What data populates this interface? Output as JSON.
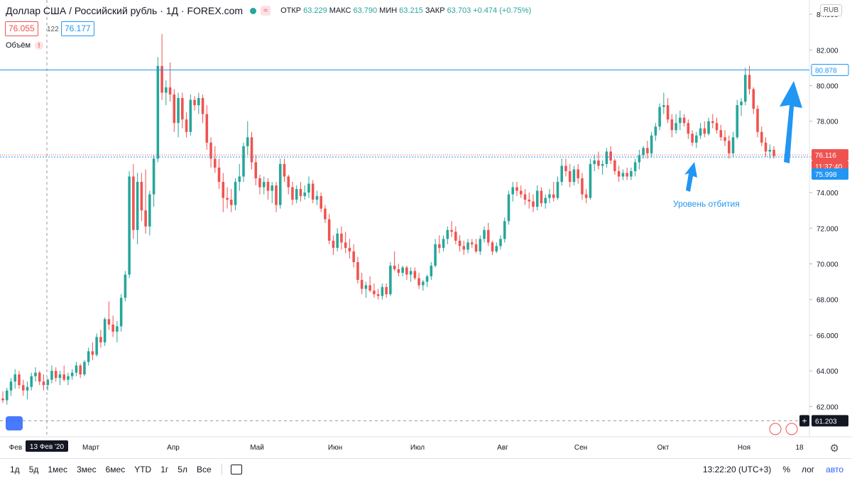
{
  "header": {
    "symbol": "Доллар США / Российский рубль · 1Д · FOREX.com",
    "wave": "≈",
    "open_label": "ОТКР",
    "open": "63.229",
    "high_label": "МАКС",
    "high": "63.790",
    "low_label": "МИН",
    "low": "63.215",
    "close_label": "ЗАКР",
    "close": "63.703",
    "change": "+0.474 (+0.75%)"
  },
  "prices": {
    "sell": "76.055",
    "spread": "122",
    "buy": "76.177"
  },
  "volume": {
    "label": "Объём",
    "warn": "!"
  },
  "currency": "RUB",
  "colors": {
    "up": "#26a69a",
    "down": "#ef5350",
    "line": "#2196f3",
    "annotation": "#2196f3"
  },
  "chart_data": {
    "type": "candlestick",
    "y_ticks": [
      "84.000",
      "82.000",
      "80.000",
      "78.000",
      "76.000",
      "74.000",
      "72.000",
      "70.000",
      "68.000",
      "66.000",
      "64.000",
      "62.000"
    ],
    "ylim": [
      60.3,
      84.8
    ],
    "x_ticks": [
      "Фев",
      "Март",
      "Апр",
      "Май",
      "Июн",
      "Июл",
      "Авг",
      "Сен",
      "Окт",
      "Ноя",
      "18"
    ],
    "crosshair_date": "13 Фев '20",
    "horizontal_levels": [
      {
        "value": 80.878,
        "label": "80.878",
        "style": "solid"
      },
      {
        "value": 76.116,
        "label": "76.116",
        "style": "price"
      },
      {
        "value": 75.998,
        "label": "75.998",
        "style": "dotted"
      }
    ],
    "countdown": "11:37:40",
    "crosshair_price": "61.203",
    "crosshair_price_value": 61.203,
    "annotation": "Уровень отбития",
    "candles": [
      [
        62.45,
        62.85,
        62.2,
        62.35
      ],
      [
        62.35,
        63.05,
        62.1,
        62.9
      ],
      [
        62.9,
        63.6,
        62.6,
        63.4
      ],
      [
        63.4,
        64.1,
        63.0,
        63.8
      ],
      [
        63.8,
        64.0,
        63.0,
        63.2
      ],
      [
        63.2,
        63.5,
        62.6,
        62.9
      ],
      [
        62.9,
        63.4,
        62.4,
        63.1
      ],
      [
        63.1,
        63.9,
        62.9,
        63.7
      ],
      [
        63.7,
        64.2,
        63.4,
        63.9
      ],
      [
        63.9,
        64.0,
        63.2,
        63.4
      ],
      [
        63.4,
        63.8,
        62.9,
        63.2
      ],
      [
        63.2,
        63.6,
        62.9,
        63.5
      ],
      [
        63.5,
        64.3,
        63.3,
        64.0
      ],
      [
        64.0,
        64.2,
        63.4,
        63.6
      ],
      [
        63.6,
        64.0,
        63.2,
        63.8
      ],
      [
        63.8,
        64.3,
        63.4,
        63.5
      ],
      [
        63.5,
        63.9,
        63.2,
        63.7
      ],
      [
        63.7,
        64.1,
        63.5,
        63.9
      ],
      [
        63.9,
        64.5,
        63.7,
        64.3
      ],
      [
        64.3,
        64.4,
        63.6,
        63.8
      ],
      [
        63.8,
        64.6,
        63.7,
        64.5
      ],
      [
        64.5,
        65.3,
        64.3,
        65.1
      ],
      [
        65.1,
        65.6,
        64.6,
        64.9
      ],
      [
        64.9,
        66.1,
        64.8,
        65.9
      ],
      [
        65.9,
        66.3,
        65.3,
        65.6
      ],
      [
        65.6,
        67.0,
        65.4,
        66.9
      ],
      [
        66.9,
        67.9,
        66.3,
        66.6
      ],
      [
        66.6,
        67.1,
        65.9,
        66.2
      ],
      [
        66.2,
        66.8,
        65.6,
        66.5
      ],
      [
        66.5,
        68.3,
        66.2,
        68.1
      ],
      [
        68.1,
        69.6,
        67.9,
        69.4
      ],
      [
        69.4,
        75.2,
        69.2,
        74.9
      ],
      [
        74.9,
        75.6,
        71.4,
        71.9
      ],
      [
        71.9,
        75.1,
        71.1,
        74.6
      ],
      [
        74.6,
        75.1,
        72.4,
        73.0
      ],
      [
        73.0,
        75.3,
        71.7,
        72.1
      ],
      [
        72.1,
        74.1,
        71.6,
        73.9
      ],
      [
        73.9,
        76.1,
        73.2,
        75.9
      ],
      [
        75.9,
        81.6,
        75.7,
        81.1
      ],
      [
        81.1,
        82.9,
        79.2,
        79.6
      ],
      [
        79.6,
        80.3,
        78.9,
        79.9
      ],
      [
        79.9,
        81.3,
        79.1,
        79.5
      ],
      [
        79.5,
        79.8,
        77.4,
        77.9
      ],
      [
        77.9,
        79.6,
        77.1,
        79.3
      ],
      [
        79.3,
        79.6,
        77.6,
        78.1
      ],
      [
        78.1,
        78.5,
        77.1,
        77.4
      ],
      [
        77.4,
        79.5,
        77.2,
        79.2
      ],
      [
        79.2,
        79.4,
        78.6,
        78.9
      ],
      [
        78.9,
        79.6,
        78.4,
        79.3
      ],
      [
        79.3,
        79.5,
        77.9,
        78.4
      ],
      [
        78.4,
        78.9,
        76.4,
        76.8
      ],
      [
        76.8,
        77.1,
        75.4,
        75.9
      ],
      [
        75.9,
        76.6,
        75.1,
        75.4
      ],
      [
        75.4,
        75.9,
        74.2,
        74.6
      ],
      [
        74.6,
        75.1,
        72.9,
        73.7
      ],
      [
        73.7,
        74.3,
        73.1,
        73.6
      ],
      [
        73.6,
        74.2,
        72.9,
        73.3
      ],
      [
        73.3,
        74.8,
        73.0,
        74.6
      ],
      [
        74.6,
        75.6,
        74.1,
        74.9
      ],
      [
        74.9,
        76.8,
        74.6,
        76.6
      ],
      [
        76.6,
        78.0,
        76.1,
        77.1
      ],
      [
        77.1,
        77.4,
        75.3,
        75.7
      ],
      [
        75.7,
        76.1,
        74.4,
        74.8
      ],
      [
        74.8,
        75.0,
        73.9,
        74.3
      ],
      [
        74.3,
        74.9,
        73.9,
        74.6
      ],
      [
        74.6,
        74.8,
        73.6,
        74.1
      ],
      [
        74.1,
        74.6,
        73.4,
        74.4
      ],
      [
        74.4,
        74.6,
        72.9,
        73.3
      ],
      [
        73.3,
        75.9,
        73.1,
        75.6
      ],
      [
        75.6,
        75.9,
        74.6,
        74.9
      ],
      [
        74.9,
        75.0,
        73.9,
        74.3
      ],
      [
        74.3,
        74.6,
        73.3,
        73.6
      ],
      [
        73.6,
        74.4,
        73.4,
        74.2
      ],
      [
        74.2,
        74.6,
        73.5,
        73.8
      ],
      [
        73.8,
        74.4,
        73.6,
        74.0
      ],
      [
        74.0,
        74.9,
        73.7,
        74.5
      ],
      [
        74.5,
        74.7,
        73.4,
        73.6
      ],
      [
        73.6,
        74.1,
        73.3,
        73.8
      ],
      [
        73.8,
        74.0,
        72.9,
        73.1
      ],
      [
        73.1,
        73.3,
        72.3,
        72.5
      ],
      [
        72.5,
        72.8,
        71.1,
        71.3
      ],
      [
        71.3,
        71.6,
        70.5,
        70.9
      ],
      [
        70.9,
        72.0,
        70.7,
        71.7
      ],
      [
        71.7,
        72.1,
        70.8,
        71.2
      ],
      [
        71.2,
        71.8,
        70.6,
        70.9
      ],
      [
        70.9,
        71.4,
        70.3,
        70.7
      ],
      [
        70.7,
        71.1,
        69.8,
        70.1
      ],
      [
        70.1,
        70.4,
        68.9,
        69.1
      ],
      [
        69.1,
        69.5,
        68.3,
        68.6
      ],
      [
        68.6,
        69.0,
        68.1,
        68.8
      ],
      [
        68.8,
        69.3,
        68.4,
        68.5
      ],
      [
        68.5,
        68.9,
        68.1,
        68.3
      ],
      [
        68.3,
        68.6,
        68.0,
        68.2
      ],
      [
        68.2,
        68.9,
        68.0,
        68.7
      ],
      [
        68.7,
        68.9,
        68.1,
        68.3
      ],
      [
        68.3,
        70.1,
        68.2,
        69.9
      ],
      [
        69.9,
        70.7,
        69.6,
        69.7
      ],
      [
        69.7,
        70.0,
        69.3,
        69.5
      ],
      [
        69.5,
        69.9,
        69.3,
        69.8
      ],
      [
        69.8,
        69.9,
        69.1,
        69.4
      ],
      [
        69.4,
        69.8,
        69.0,
        69.6
      ],
      [
        69.6,
        69.8,
        69.1,
        69.2
      ],
      [
        69.2,
        69.5,
        68.6,
        68.8
      ],
      [
        68.8,
        69.1,
        68.5,
        69.0
      ],
      [
        69.0,
        69.4,
        68.7,
        69.3
      ],
      [
        69.3,
        70.1,
        69.1,
        69.9
      ],
      [
        69.9,
        71.4,
        69.8,
        71.1
      ],
      [
        71.1,
        71.6,
        70.6,
        70.9
      ],
      [
        70.9,
        71.6,
        70.7,
        71.4
      ],
      [
        71.4,
        72.1,
        71.1,
        71.9
      ],
      [
        71.9,
        72.4,
        71.5,
        71.8
      ],
      [
        71.8,
        72.1,
        71.1,
        71.3
      ],
      [
        71.3,
        71.6,
        70.7,
        71.0
      ],
      [
        71.0,
        71.3,
        70.5,
        70.8
      ],
      [
        70.8,
        71.4,
        70.6,
        71.2
      ],
      [
        71.2,
        71.4,
        70.9,
        71.1
      ],
      [
        71.1,
        71.4,
        70.6,
        70.7
      ],
      [
        70.7,
        71.6,
        70.5,
        71.4
      ],
      [
        71.4,
        72.1,
        71.2,
        71.9
      ],
      [
        71.9,
        72.3,
        71.0,
        71.2
      ],
      [
        71.2,
        71.3,
        70.5,
        70.7
      ],
      [
        70.7,
        71.2,
        70.6,
        71.0
      ],
      [
        71.0,
        71.6,
        70.8,
        71.4
      ],
      [
        71.4,
        72.6,
        71.2,
        72.4
      ],
      [
        72.4,
        74.1,
        72.2,
        73.9
      ],
      [
        73.9,
        74.6,
        73.5,
        74.3
      ],
      [
        74.3,
        74.6,
        73.8,
        74.1
      ],
      [
        74.1,
        74.4,
        73.7,
        73.9
      ],
      [
        73.9,
        74.2,
        73.3,
        73.6
      ],
      [
        73.6,
        74.0,
        73.1,
        73.5
      ],
      [
        73.5,
        73.9,
        72.9,
        73.2
      ],
      [
        73.2,
        74.4,
        73.0,
        74.1
      ],
      [
        74.1,
        74.3,
        73.2,
        73.4
      ],
      [
        73.4,
        73.9,
        73.1,
        73.7
      ],
      [
        73.7,
        74.2,
        73.4,
        73.9
      ],
      [
        73.9,
        74.6,
        73.5,
        73.7
      ],
      [
        73.7,
        74.9,
        73.6,
        74.6
      ],
      [
        74.6,
        75.9,
        74.4,
        75.5
      ],
      [
        75.5,
        75.9,
        74.9,
        75.2
      ],
      [
        75.2,
        75.6,
        74.3,
        74.6
      ],
      [
        74.6,
        75.5,
        74.4,
        75.3
      ],
      [
        75.3,
        75.6,
        74.5,
        74.8
      ],
      [
        74.8,
        75.1,
        73.6,
        73.9
      ],
      [
        73.9,
        74.2,
        73.4,
        73.7
      ],
      [
        73.7,
        75.9,
        73.6,
        75.6
      ],
      [
        75.6,
        76.1,
        75.2,
        75.8
      ],
      [
        75.8,
        76.3,
        75.3,
        75.5
      ],
      [
        75.5,
        75.8,
        75.0,
        75.6
      ],
      [
        75.6,
        76.5,
        75.4,
        76.3
      ],
      [
        76.3,
        76.6,
        75.6,
        75.8
      ],
      [
        75.8,
        75.9,
        75.0,
        75.2
      ],
      [
        75.2,
        75.5,
        74.6,
        74.9
      ],
      [
        74.9,
        75.3,
        74.7,
        75.1
      ],
      [
        75.1,
        75.4,
        74.7,
        74.9
      ],
      [
        74.9,
        75.4,
        74.7,
        75.2
      ],
      [
        75.2,
        75.9,
        74.9,
        75.7
      ],
      [
        75.7,
        76.4,
        75.3,
        76.1
      ],
      [
        76.1,
        76.6,
        75.9,
        76.5
      ],
      [
        76.5,
        76.9,
        75.9,
        76.2
      ],
      [
        76.2,
        77.4,
        76.0,
        77.2
      ],
      [
        77.2,
        77.9,
        76.9,
        77.7
      ],
      [
        77.7,
        79.0,
        77.5,
        78.8
      ],
      [
        78.8,
        79.6,
        78.4,
        78.9
      ],
      [
        78.9,
        79.3,
        77.9,
        78.1
      ],
      [
        78.1,
        78.4,
        77.1,
        77.5
      ],
      [
        77.5,
        78.4,
        77.3,
        77.9
      ],
      [
        77.9,
        78.6,
        77.5,
        78.2
      ],
      [
        78.2,
        78.4,
        77.7,
        77.9
      ],
      [
        77.9,
        78.1,
        77.0,
        77.3
      ],
      [
        77.3,
        77.5,
        76.6,
        76.8
      ],
      [
        76.8,
        77.4,
        76.5,
        77.2
      ],
      [
        77.2,
        77.9,
        77.0,
        77.6
      ],
      [
        77.6,
        78.0,
        77.1,
        77.3
      ],
      [
        77.3,
        78.2,
        77.2,
        78.0
      ],
      [
        78.0,
        78.4,
        77.6,
        77.9
      ],
      [
        77.9,
        78.2,
        77.3,
        77.5
      ],
      [
        77.5,
        77.8,
        76.9,
        77.1
      ],
      [
        77.1,
        77.5,
        76.6,
        76.9
      ],
      [
        76.9,
        77.2,
        75.9,
        76.2
      ],
      [
        76.2,
        77.4,
        76.0,
        77.1
      ],
      [
        77.1,
        79.2,
        77.0,
        78.9
      ],
      [
        78.9,
        79.3,
        78.3,
        79.1
      ],
      [
        79.1,
        81.0,
        78.9,
        80.6
      ],
      [
        80.6,
        81.1,
        79.5,
        79.8
      ],
      [
        79.8,
        79.9,
        78.4,
        78.7
      ],
      [
        78.7,
        78.9,
        77.1,
        77.4
      ],
      [
        77.4,
        77.7,
        76.6,
        76.8
      ],
      [
        76.8,
        77.1,
        76.0,
        76.3
      ],
      [
        76.3,
        76.7,
        75.9,
        76.4
      ],
      [
        76.4,
        76.6,
        75.9,
        76.05
      ]
    ]
  },
  "toolbar": {
    "ranges": [
      "1д",
      "5д",
      "1мес",
      "3мес",
      "6мес",
      "YTD",
      "1г",
      "5л",
      "Все"
    ],
    "time": "13:22:20 (UTC+3)",
    "percent": "%",
    "log": "лог",
    "auto": "авто"
  }
}
